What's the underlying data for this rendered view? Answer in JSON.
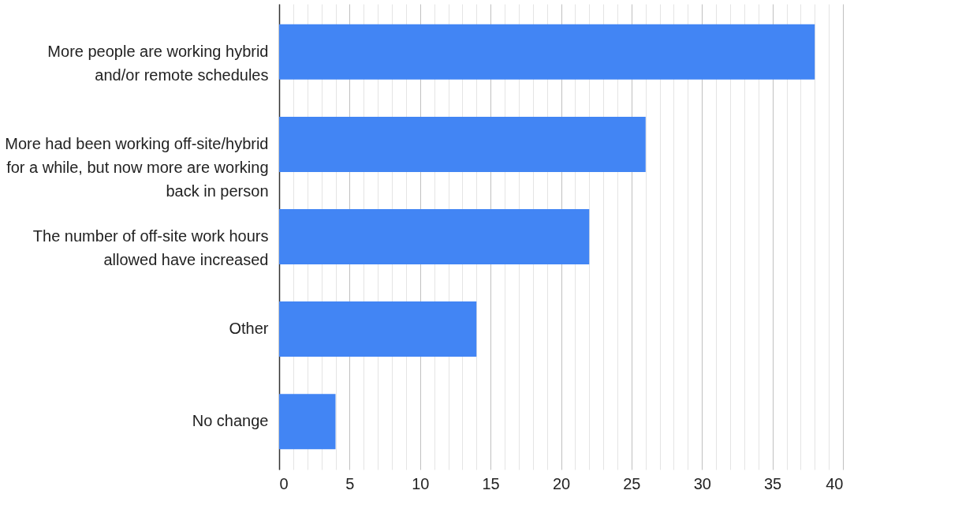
{
  "chart_data": {
    "type": "bar",
    "orientation": "horizontal",
    "categories": [
      "More people are working hybrid\nand/or remote schedules",
      "More had been working off-site/hybrid\nfor a while, but now more are working\nback in person",
      "The number of off-site work hours\nallowed have increased",
      "Other",
      "No change"
    ],
    "values": [
      38,
      26,
      22,
      14,
      4
    ],
    "color": "#4285f4",
    "xlim": [
      0,
      40
    ],
    "xticks": [
      0,
      {
        "value": 1,
        "label": null
      },
      {
        "value": 2,
        "label": null
      },
      {
        "value": 3,
        "label": null
      },
      {
        "value": 4,
        "label": null
      },
      5,
      {
        "value": 6,
        "label": null
      },
      {
        "value": 7,
        "label": null
      },
      {
        "value": 8,
        "label": null
      },
      {
        "value": 9,
        "label": null
      },
      10,
      {
        "value": 11,
        "label": null
      },
      {
        "value": 12,
        "label": null
      },
      {
        "value": 13,
        "label": null
      },
      {
        "value": 14,
        "label": null
      },
      15,
      {
        "value": 16,
        "label": null
      },
      {
        "value": 17,
        "label": null
      },
      {
        "value": 18,
        "label": null
      },
      {
        "value": 19,
        "label": null
      },
      20,
      {
        "value": 21,
        "label": null
      },
      {
        "value": 22,
        "label": null
      },
      {
        "value": 23,
        "label": null
      },
      {
        "value": 24,
        "label": null
      },
      25,
      {
        "value": 26,
        "label": null
      },
      {
        "value": 27,
        "label": null
      },
      {
        "value": 28,
        "label": null
      },
      {
        "value": 29,
        "label": null
      },
      30,
      {
        "value": 31,
        "label": null
      },
      {
        "value": 32,
        "label": null
      },
      {
        "value": 33,
        "label": null
      },
      {
        "value": 34,
        "label": null
      },
      35,
      {
        "value": 36,
        "label": null
      },
      {
        "value": 37,
        "label": null
      },
      {
        "value": 38,
        "label": null
      },
      {
        "value": 39,
        "label": null
      },
      40
    ],
    "grid": "x"
  }
}
